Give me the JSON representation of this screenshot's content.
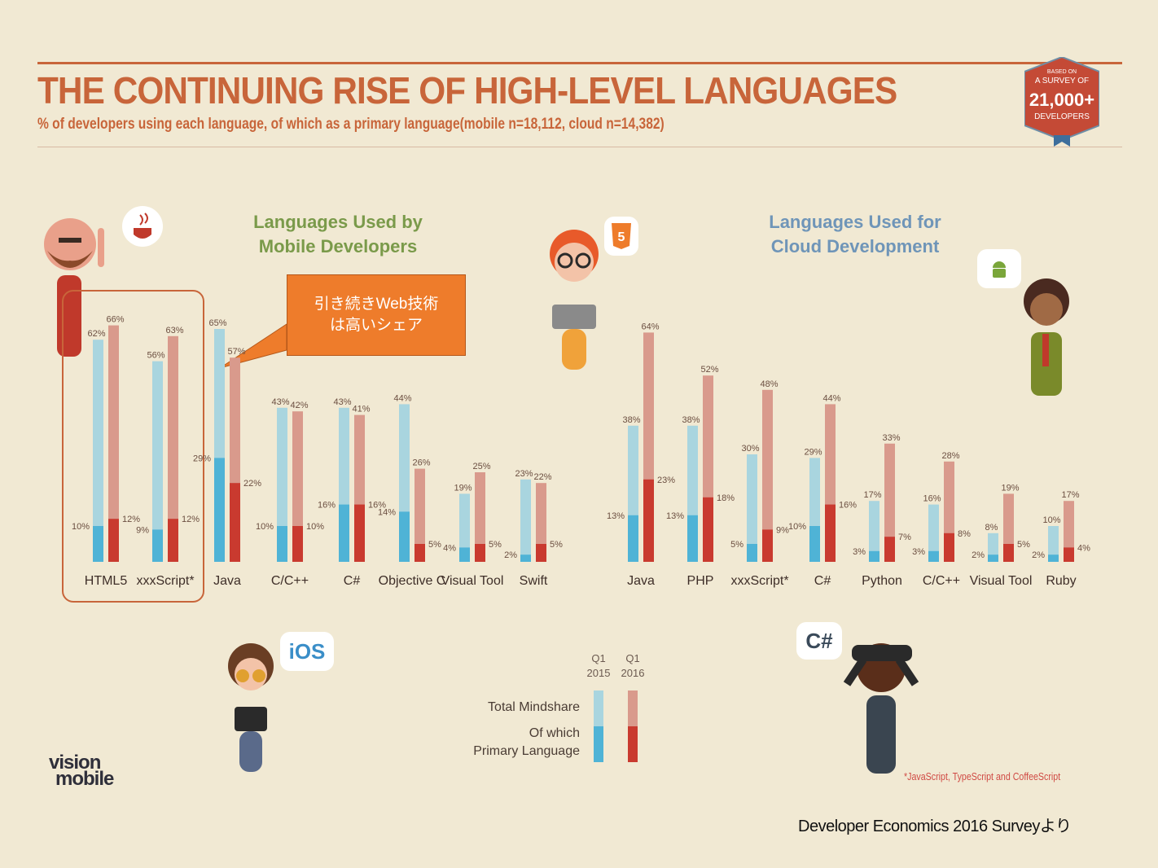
{
  "header": {
    "title": "THE CONTINUING RISE OF HIGH-LEVEL LANGUAGES",
    "subtitle": "% of developers using each language, of which as a primary language(mobile n=18,112, cloud n=14,382)"
  },
  "badge": {
    "line1": "BASED ON",
    "line2": "A SURVEY OF",
    "number": "21,000+",
    "line3": "DEVELOPERS"
  },
  "sections": {
    "mobile_title_1": "Languages Used by",
    "mobile_title_2": "Mobile Developers",
    "cloud_title_1": "Languages Used for",
    "cloud_title_2": "Cloud Development"
  },
  "callout": {
    "line1": "引き続きWeb技術",
    "line2": "は高いシェア"
  },
  "legend": {
    "q1_2015_q": "Q1",
    "q1_2015_y": "2015",
    "q1_2016_q": "Q1",
    "q1_2016_y": "2016",
    "total_label": "Total Mindshare",
    "primary_label_1": "Of which",
    "primary_label_2": "Primary Language"
  },
  "bubbles": {
    "ios": "iOS",
    "csharp": "C#",
    "html5": "5"
  },
  "logo": {
    "line1": "vision",
    "line2": "mobile"
  },
  "footnote": "*JavaScript, TypeScript and CoffeeScript",
  "source": "Developer Economics 2016 Surveyより",
  "colors": {
    "light_blue": "#a9d5df",
    "dark_blue": "#4fb3d6",
    "light_red": "#d99a8c",
    "dark_red": "#c93a2f",
    "accent": "#c8653a",
    "callout": "#ee7c2b"
  },
  "chart_data": [
    {
      "type": "bar",
      "title": "Languages Used by Mobile Developers",
      "unit": "%",
      "categories": [
        "HTML5",
        "xxxScript*",
        "Java",
        "C/C++",
        "C#",
        "Objective C",
        "Visual Tool",
        "Swift"
      ],
      "series": [
        {
          "name": "Total Mindshare Q1 2015",
          "values": [
            62,
            56,
            65,
            43,
            43,
            44,
            19,
            23
          ]
        },
        {
          "name": "Total Mindshare Q1 2016",
          "values": [
            66,
            63,
            57,
            42,
            41,
            26,
            25,
            22
          ]
        },
        {
          "name": "Primary Language Q1 2015",
          "values": [
            10,
            9,
            29,
            10,
            16,
            14,
            4,
            2
          ]
        },
        {
          "name": "Primary Language Q1 2016",
          "values": [
            12,
            12,
            22,
            10,
            16,
            5,
            5,
            5
          ]
        }
      ]
    },
    {
      "type": "bar",
      "title": "Languages Used for Cloud Development",
      "unit": "%",
      "categories": [
        "Java",
        "PHP",
        "xxxScript*",
        "C#",
        "Python",
        "C/C++",
        "Visual Tool",
        "Ruby"
      ],
      "series": [
        {
          "name": "Total Mindshare Q1 2015",
          "values": [
            38,
            38,
            30,
            29,
            17,
            16,
            8,
            10
          ]
        },
        {
          "name": "Total Mindshare Q1 2016",
          "values": [
            64,
            52,
            48,
            44,
            33,
            28,
            19,
            17
          ]
        },
        {
          "name": "Primary Language Q1 2015",
          "values": [
            13,
            13,
            5,
            10,
            3,
            3,
            2,
            2
          ]
        },
        {
          "name": "Primary Language Q1 2016",
          "values": [
            23,
            18,
            9,
            16,
            7,
            8,
            5,
            4
          ]
        }
      ]
    }
  ]
}
